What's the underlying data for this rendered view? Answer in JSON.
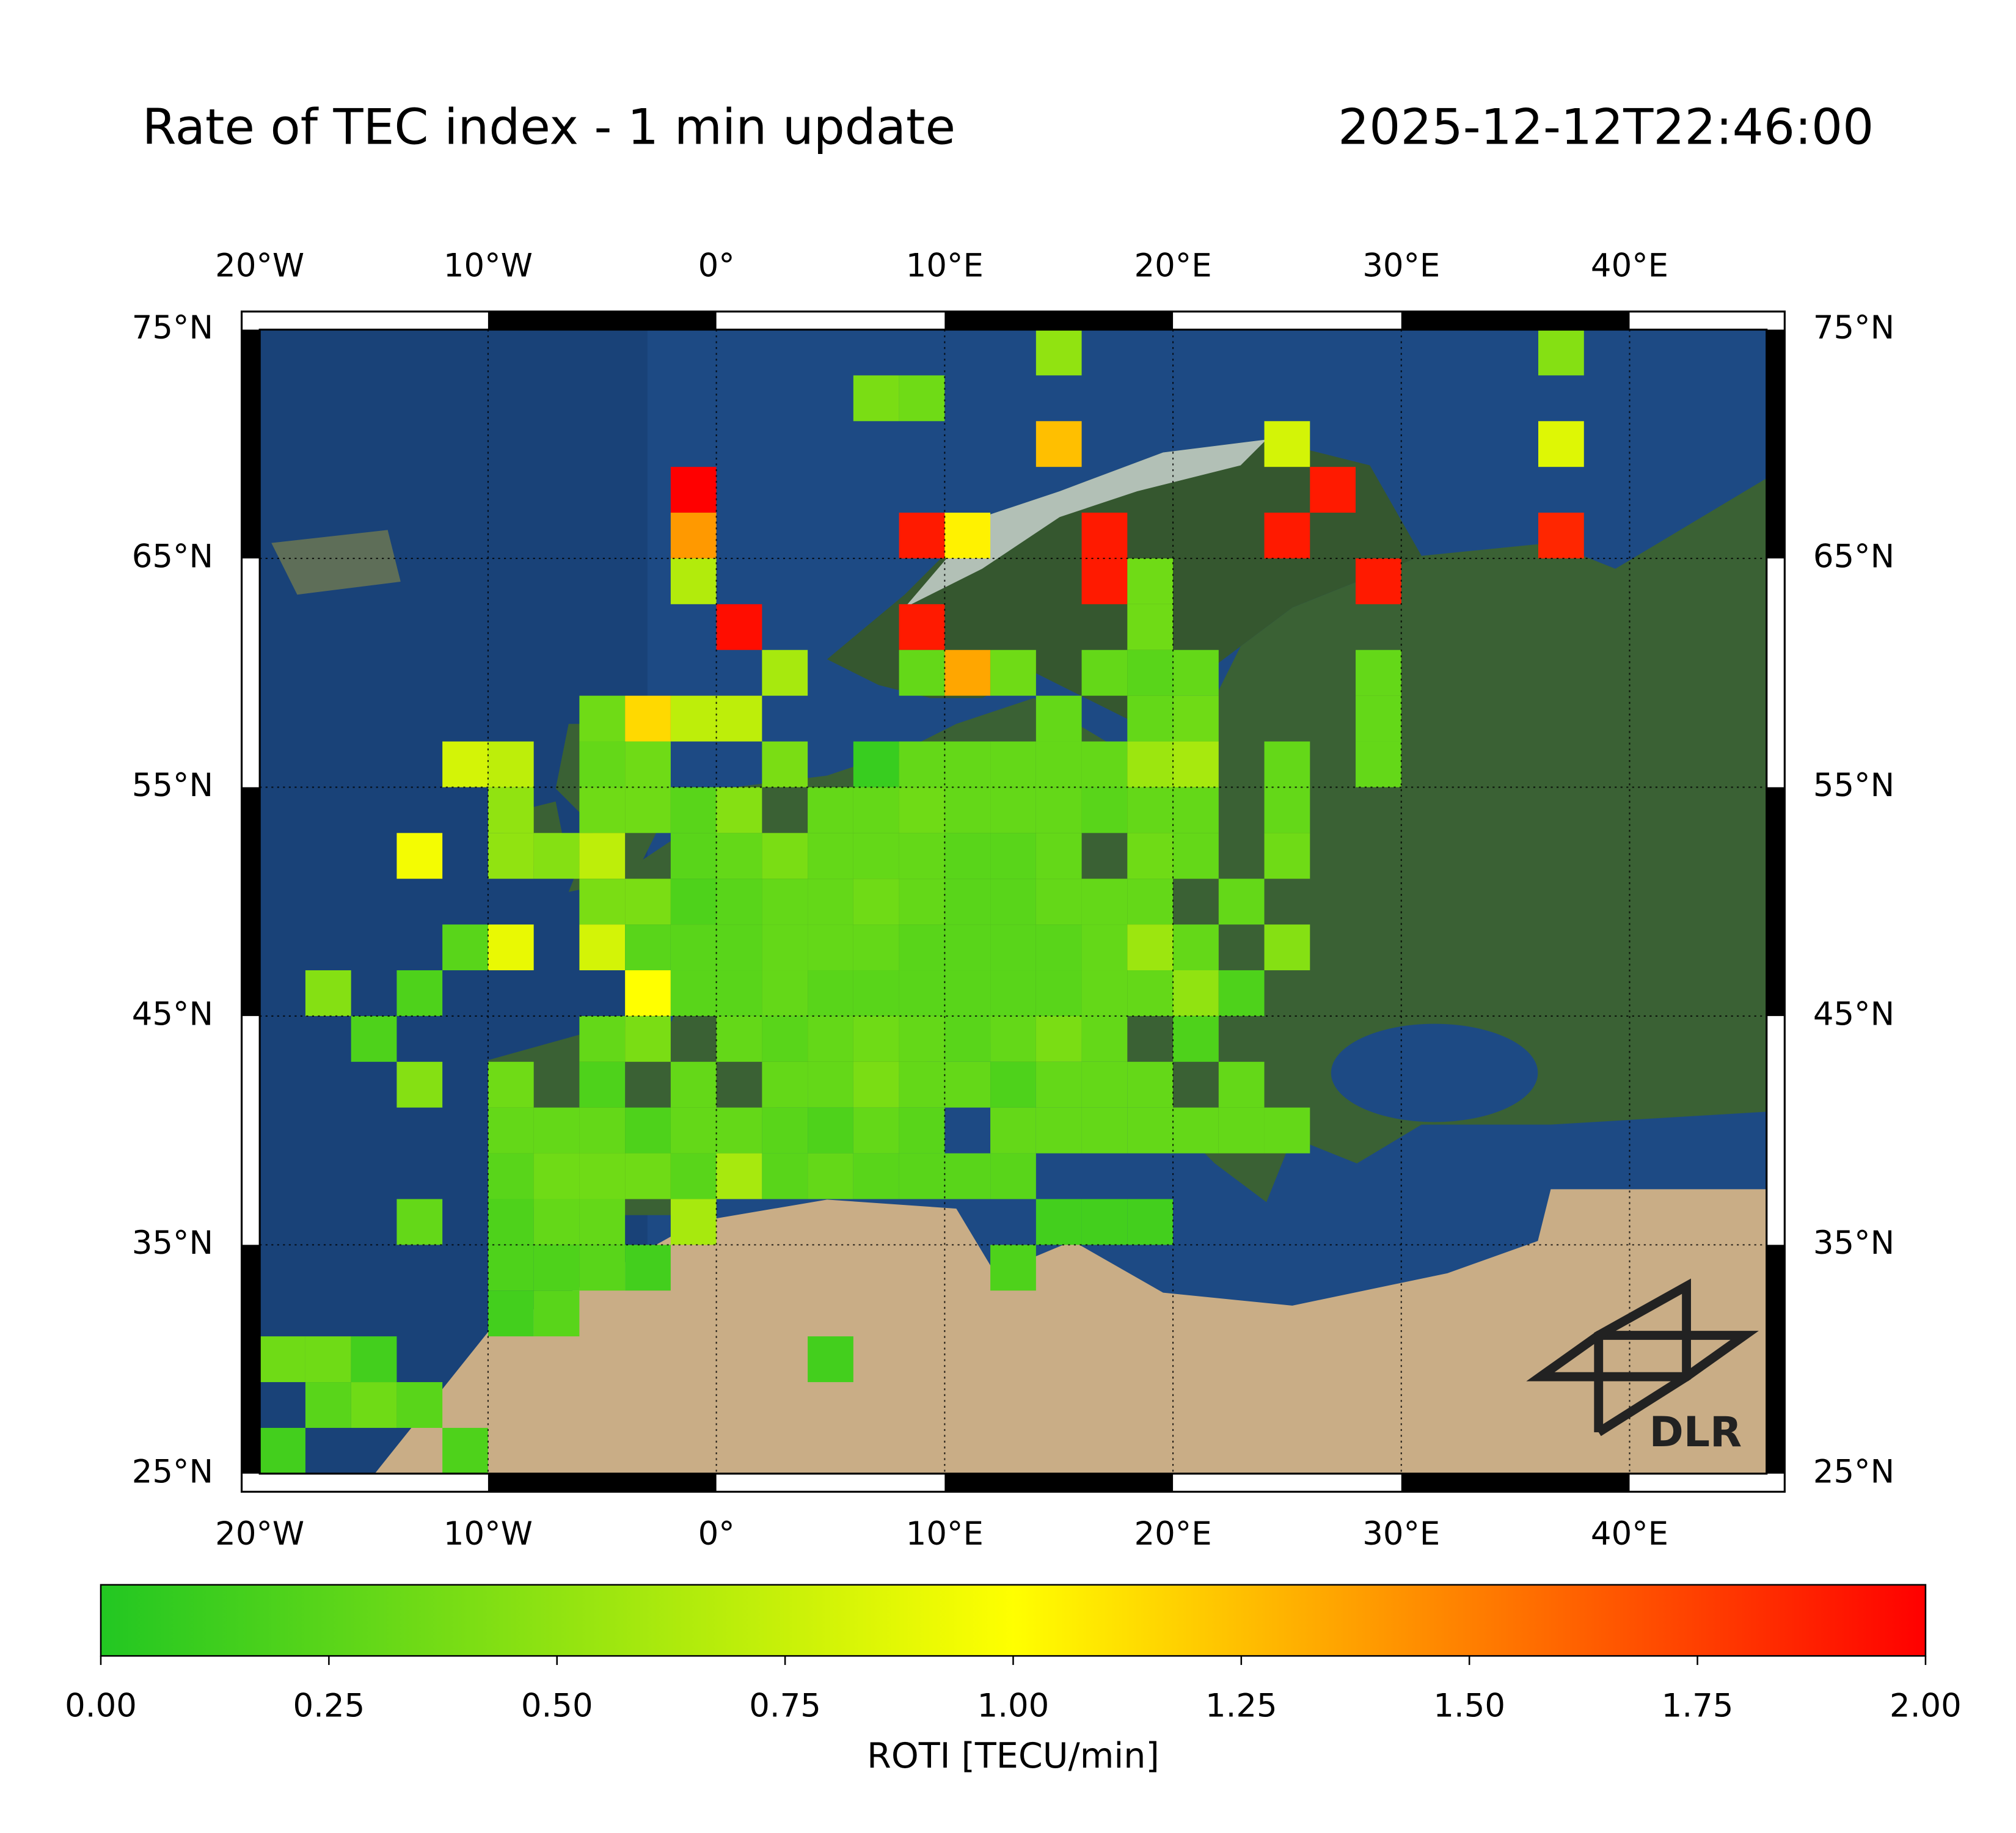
{
  "chart_data": {
    "type": "heatmap",
    "title": "Rate of TEC index - 1 min update",
    "timestamp": "2025-12-12T22:46:00",
    "logo": "DLR",
    "xlim": [
      -20,
      46
    ],
    "ylim": [
      25,
      75
    ],
    "xticks": [
      {
        "value": -20,
        "label": "20°W"
      },
      {
        "value": -10,
        "label": "10°W"
      },
      {
        "value": 0,
        "label": "0°"
      },
      {
        "value": 10,
        "label": "10°E"
      },
      {
        "value": 20,
        "label": "20°E"
      },
      {
        "value": 30,
        "label": "30°E"
      },
      {
        "value": 40,
        "label": "40°E"
      }
    ],
    "yticks": [
      {
        "value": 25,
        "label": "25°N"
      },
      {
        "value": 35,
        "label": "35°N"
      },
      {
        "value": 45,
        "label": "45°N"
      },
      {
        "value": 55,
        "label": "55°N"
      },
      {
        "value": 65,
        "label": "65°N"
      },
      {
        "value": 75,
        "label": "75°N"
      }
    ],
    "grid": true,
    "colormap": [
      "#22c722",
      "#ffff00",
      "#ff0000"
    ],
    "colorbar": {
      "label": "ROTI [TECU/min]",
      "clim": [
        0,
        2
      ],
      "ticks": [
        {
          "value": 0,
          "label": "0.00"
        },
        {
          "value": 0.25,
          "label": "0.25"
        },
        {
          "value": 0.5,
          "label": "0.50"
        },
        {
          "value": 0.75,
          "label": "0.75"
        },
        {
          "value": 1,
          "label": "1.00"
        },
        {
          "value": 1.25,
          "label": "1.25"
        },
        {
          "value": 1.5,
          "label": "1.50"
        },
        {
          "value": 1.75,
          "label": "1.75"
        },
        {
          "value": 2,
          "label": "2.00"
        }
      ]
    },
    "cells": [
      {
        "lon": 15,
        "lat": 74,
        "value": 0.5
      },
      {
        "lon": 37,
        "lat": 74,
        "value": 0.45
      },
      {
        "lon": 7,
        "lat": 72,
        "value": 0.4
      },
      {
        "lon": 9,
        "lat": 72,
        "value": 0.35
      },
      {
        "lon": 15,
        "lat": 70,
        "value": 1.25
      },
      {
        "lon": 25,
        "lat": 70,
        "value": 0.8
      },
      {
        "lon": 37,
        "lat": 70,
        "value": 0.85
      },
      {
        "lon": -1,
        "lat": 68,
        "value": 2
      },
      {
        "lon": 27,
        "lat": 68,
        "value": 1.9
      },
      {
        "lon": -1,
        "lat": 66,
        "value": 1.4
      },
      {
        "lon": 9,
        "lat": 66,
        "value": 1.9
      },
      {
        "lon": 11,
        "lat": 66,
        "value": 1.05
      },
      {
        "lon": 17,
        "lat": 66,
        "value": 1.9
      },
      {
        "lon": 25,
        "lat": 66,
        "value": 1.9
      },
      {
        "lon": 37,
        "lat": 66,
        "value": 1.85
      },
      {
        "lon": -1,
        "lat": 64,
        "value": 0.65
      },
      {
        "lon": 17,
        "lat": 64,
        "value": 1.9
      },
      {
        "lon": 19,
        "lat": 64,
        "value": 0.35
      },
      {
        "lon": 29,
        "lat": 64,
        "value": 1.9
      },
      {
        "lon": 1,
        "lat": 62,
        "value": 1.95
      },
      {
        "lon": 9,
        "lat": 62,
        "value": 1.9
      },
      {
        "lon": 19,
        "lat": 62,
        "value": 0.35
      },
      {
        "lon": 3,
        "lat": 60,
        "value": 0.6
      },
      {
        "lon": 9,
        "lat": 60,
        "value": 0.3
      },
      {
        "lon": 11,
        "lat": 60,
        "value": 1.35
      },
      {
        "lon": 13,
        "lat": 60,
        "value": 0.35
      },
      {
        "lon": 17,
        "lat": 60,
        "value": 0.3
      },
      {
        "lon": 19,
        "lat": 60,
        "value": 0.25
      },
      {
        "lon": 21,
        "lat": 60,
        "value": 0.3
      },
      {
        "lon": 29,
        "lat": 60,
        "value": 0.3
      },
      {
        "lon": -5,
        "lat": 58,
        "value": 0.35
      },
      {
        "lon": -3,
        "lat": 58,
        "value": 1.15
      },
      {
        "lon": -1,
        "lat": 58,
        "value": 0.7
      },
      {
        "lon": 1,
        "lat": 58,
        "value": 0.7
      },
      {
        "lon": 15,
        "lat": 58,
        "value": 0.3
      },
      {
        "lon": 19,
        "lat": 58,
        "value": 0.3
      },
      {
        "lon": 21,
        "lat": 58,
        "value": 0.35
      },
      {
        "lon": 29,
        "lat": 58,
        "value": 0.3
      },
      {
        "lon": -11,
        "lat": 56,
        "value": 0.8
      },
      {
        "lon": -9,
        "lat": 56,
        "value": 0.7
      },
      {
        "lon": -5,
        "lat": 56,
        "value": 0.3
      },
      {
        "lon": -3,
        "lat": 56,
        "value": 0.35
      },
      {
        "lon": 3,
        "lat": 56,
        "value": 0.4
      },
      {
        "lon": 7,
        "lat": 56,
        "value": 0.1
      },
      {
        "lon": 9,
        "lat": 56,
        "value": 0.3
      },
      {
        "lon": 11,
        "lat": 56,
        "value": 0.3
      },
      {
        "lon": 13,
        "lat": 56,
        "value": 0.3
      },
      {
        "lon": 15,
        "lat": 56,
        "value": 0.3
      },
      {
        "lon": 17,
        "lat": 56,
        "value": 0.3
      },
      {
        "lon": 19,
        "lat": 56,
        "value": 0.55
      },
      {
        "lon": 21,
        "lat": 56,
        "value": 0.6
      },
      {
        "lon": 25,
        "lat": 56,
        "value": 0.3
      },
      {
        "lon": 29,
        "lat": 56,
        "value": 0.3
      },
      {
        "lon": -9,
        "lat": 54,
        "value": 0.5
      },
      {
        "lon": -5,
        "lat": 54,
        "value": 0.35
      },
      {
        "lon": -3,
        "lat": 54,
        "value": 0.35
      },
      {
        "lon": -1,
        "lat": 54,
        "value": 0.25
      },
      {
        "lon": 1,
        "lat": 54,
        "value": 0.45
      },
      {
        "lon": 5,
        "lat": 54,
        "value": 0.3
      },
      {
        "lon": 7,
        "lat": 54,
        "value": 0.3
      },
      {
        "lon": 9,
        "lat": 54,
        "value": 0.35
      },
      {
        "lon": 11,
        "lat": 54,
        "value": 0.3
      },
      {
        "lon": 13,
        "lat": 54,
        "value": 0.3
      },
      {
        "lon": 15,
        "lat": 54,
        "value": 0.3
      },
      {
        "lon": 17,
        "lat": 54,
        "value": 0.25
      },
      {
        "lon": 19,
        "lat": 54,
        "value": 0.3
      },
      {
        "lon": 21,
        "lat": 54,
        "value": 0.3
      },
      {
        "lon": 25,
        "lat": 54,
        "value": 0.3
      },
      {
        "lon": -13,
        "lat": 52,
        "value": 0.95
      },
      {
        "lon": -9,
        "lat": 52,
        "value": 0.5
      },
      {
        "lon": -7,
        "lat": 52,
        "value": 0.45
      },
      {
        "lon": -5,
        "lat": 52,
        "value": 0.7
      },
      {
        "lon": -1,
        "lat": 52,
        "value": 0.25
      },
      {
        "lon": 1,
        "lat": 52,
        "value": 0.3
      },
      {
        "lon": 3,
        "lat": 52,
        "value": 0.4
      },
      {
        "lon": 5,
        "lat": 52,
        "value": 0.3
      },
      {
        "lon": 7,
        "lat": 52,
        "value": 0.3
      },
      {
        "lon": 9,
        "lat": 52,
        "value": 0.3
      },
      {
        "lon": 11,
        "lat": 52,
        "value": 0.25
      },
      {
        "lon": 13,
        "lat": 52,
        "value": 0.25
      },
      {
        "lon": 15,
        "lat": 52,
        "value": 0.3
      },
      {
        "lon": 19,
        "lat": 52,
        "value": 0.35
      },
      {
        "lon": 21,
        "lat": 52,
        "value": 0.3
      },
      {
        "lon": 25,
        "lat": 52,
        "value": 0.35
      },
      {
        "lon": -5,
        "lat": 50,
        "value": 0.4
      },
      {
        "lon": -3,
        "lat": 50,
        "value": 0.4
      },
      {
        "lon": -1,
        "lat": 50,
        "value": 0.2
      },
      {
        "lon": 1,
        "lat": 50,
        "value": 0.25
      },
      {
        "lon": 3,
        "lat": 50,
        "value": 0.3
      },
      {
        "lon": 5,
        "lat": 50,
        "value": 0.3
      },
      {
        "lon": 7,
        "lat": 50,
        "value": 0.35
      },
      {
        "lon": 9,
        "lat": 50,
        "value": 0.3
      },
      {
        "lon": 11,
        "lat": 50,
        "value": 0.25
      },
      {
        "lon": 13,
        "lat": 50,
        "value": 0.25
      },
      {
        "lon": 15,
        "lat": 50,
        "value": 0.3
      },
      {
        "lon": 17,
        "lat": 50,
        "value": 0.3
      },
      {
        "lon": 19,
        "lat": 50,
        "value": 0.3
      },
      {
        "lon": 23,
        "lat": 50,
        "value": 0.3
      },
      {
        "lon": -11,
        "lat": 48,
        "value": 0.25
      },
      {
        "lon": -9,
        "lat": 48,
        "value": 0.9
      },
      {
        "lon": -5,
        "lat": 48,
        "value": 0.8
      },
      {
        "lon": -3,
        "lat": 48,
        "value": 0.25
      },
      {
        "lon": -1,
        "lat": 48,
        "value": 0.25
      },
      {
        "lon": 1,
        "lat": 48,
        "value": 0.25
      },
      {
        "lon": 3,
        "lat": 48,
        "value": 0.3
      },
      {
        "lon": 5,
        "lat": 48,
        "value": 0.3
      },
      {
        "lon": 7,
        "lat": 48,
        "value": 0.3
      },
      {
        "lon": 9,
        "lat": 48,
        "value": 0.25
      },
      {
        "lon": 11,
        "lat": 48,
        "value": 0.25
      },
      {
        "lon": 13,
        "lat": 48,
        "value": 0.25
      },
      {
        "lon": 15,
        "lat": 48,
        "value": 0.25
      },
      {
        "lon": 17,
        "lat": 48,
        "value": 0.3
      },
      {
        "lon": 19,
        "lat": 48,
        "value": 0.55
      },
      {
        "lon": 21,
        "lat": 48,
        "value": 0.3
      },
      {
        "lon": 25,
        "lat": 48,
        "value": 0.45
      },
      {
        "lon": -17,
        "lat": 46,
        "value": 0.45
      },
      {
        "lon": -13,
        "lat": 46,
        "value": 0.2
      },
      {
        "lon": -3,
        "lat": 46,
        "value": 1
      },
      {
        "lon": -1,
        "lat": 46,
        "value": 0.25
      },
      {
        "lon": 1,
        "lat": 46,
        "value": 0.25
      },
      {
        "lon": 3,
        "lat": 46,
        "value": 0.3
      },
      {
        "lon": 5,
        "lat": 46,
        "value": 0.25
      },
      {
        "lon": 7,
        "lat": 46,
        "value": 0.25
      },
      {
        "lon": 9,
        "lat": 46,
        "value": 0.25
      },
      {
        "lon": 11,
        "lat": 46,
        "value": 0.25
      },
      {
        "lon": 13,
        "lat": 46,
        "value": 0.25
      },
      {
        "lon": 15,
        "lat": 46,
        "value": 0.25
      },
      {
        "lon": 17,
        "lat": 46,
        "value": 0.3
      },
      {
        "lon": 19,
        "lat": 46,
        "value": 0.3
      },
      {
        "lon": 21,
        "lat": 46,
        "value": 0.5
      },
      {
        "lon": 23,
        "lat": 46,
        "value": 0.2
      },
      {
        "lon": -15,
        "lat": 44,
        "value": 0.2
      },
      {
        "lon": -5,
        "lat": 44,
        "value": 0.3
      },
      {
        "lon": -3,
        "lat": 44,
        "value": 0.4
      },
      {
        "lon": 1,
        "lat": 44,
        "value": 0.3
      },
      {
        "lon": 3,
        "lat": 44,
        "value": 0.25
      },
      {
        "lon": 5,
        "lat": 44,
        "value": 0.3
      },
      {
        "lon": 7,
        "lat": 44,
        "value": 0.35
      },
      {
        "lon": 9,
        "lat": 44,
        "value": 0.3
      },
      {
        "lon": 11,
        "lat": 44,
        "value": 0.25
      },
      {
        "lon": 13,
        "lat": 44,
        "value": 0.3
      },
      {
        "lon": 15,
        "lat": 44,
        "value": 0.4
      },
      {
        "lon": 17,
        "lat": 44,
        "value": 0.3
      },
      {
        "lon": 21,
        "lat": 44,
        "value": 0.2
      },
      {
        "lon": -13,
        "lat": 42,
        "value": 0.45
      },
      {
        "lon": -9,
        "lat": 42,
        "value": 0.35
      },
      {
        "lon": -5,
        "lat": 42,
        "value": 0.2
      },
      {
        "lon": -1,
        "lat": 42,
        "value": 0.3
      },
      {
        "lon": 3,
        "lat": 42,
        "value": 0.3
      },
      {
        "lon": 5,
        "lat": 42,
        "value": 0.3
      },
      {
        "lon": 7,
        "lat": 42,
        "value": 0.4
      },
      {
        "lon": 9,
        "lat": 42,
        "value": 0.3
      },
      {
        "lon": 11,
        "lat": 42,
        "value": 0.3
      },
      {
        "lon": 13,
        "lat": 42,
        "value": 0.2
      },
      {
        "lon": 15,
        "lat": 42,
        "value": 0.3
      },
      {
        "lon": 17,
        "lat": 42,
        "value": 0.3
      },
      {
        "lon": 19,
        "lat": 42,
        "value": 0.3
      },
      {
        "lon": 23,
        "lat": 42,
        "value": 0.3
      },
      {
        "lon": -9,
        "lat": 40,
        "value": 0.3
      },
      {
        "lon": -7,
        "lat": 40,
        "value": 0.3
      },
      {
        "lon": -5,
        "lat": 40,
        "value": 0.3
      },
      {
        "lon": -3,
        "lat": 40,
        "value": 0.2
      },
      {
        "lon": -1,
        "lat": 40,
        "value": 0.3
      },
      {
        "lon": 1,
        "lat": 40,
        "value": 0.3
      },
      {
        "lon": 3,
        "lat": 40,
        "value": 0.25
      },
      {
        "lon": 5,
        "lat": 40,
        "value": 0.2
      },
      {
        "lon": 7,
        "lat": 40,
        "value": 0.3
      },
      {
        "lon": 9,
        "lat": 40,
        "value": 0.25
      },
      {
        "lon": 13,
        "lat": 40,
        "value": 0.3
      },
      {
        "lon": 15,
        "lat": 40,
        "value": 0.3
      },
      {
        "lon": 17,
        "lat": 40,
        "value": 0.3
      },
      {
        "lon": 19,
        "lat": 40,
        "value": 0.3
      },
      {
        "lon": 21,
        "lat": 40,
        "value": 0.3
      },
      {
        "lon": 23,
        "lat": 40,
        "value": 0.3
      },
      {
        "lon": 25,
        "lat": 40,
        "value": 0.3
      },
      {
        "lon": -9,
        "lat": 38,
        "value": 0.25
      },
      {
        "lon": -7,
        "lat": 38,
        "value": 0.35
      },
      {
        "lon": -5,
        "lat": 38,
        "value": 0.35
      },
      {
        "lon": -3,
        "lat": 38,
        "value": 0.35
      },
      {
        "lon": -1,
        "lat": 38,
        "value": 0.25
      },
      {
        "lon": 1,
        "lat": 38,
        "value": 0.6
      },
      {
        "lon": 3,
        "lat": 38,
        "value": 0.25
      },
      {
        "lon": 5,
        "lat": 38,
        "value": 0.3
      },
      {
        "lon": 7,
        "lat": 38,
        "value": 0.25
      },
      {
        "lon": 9,
        "lat": 38,
        "value": 0.25
      },
      {
        "lon": 11,
        "lat": 38,
        "value": 0.25
      },
      {
        "lon": 13,
        "lat": 38,
        "value": 0.25
      },
      {
        "lon": -13,
        "lat": 36,
        "value": 0.3
      },
      {
        "lon": -9,
        "lat": 36,
        "value": 0.2
      },
      {
        "lon": -7,
        "lat": 36,
        "value": 0.3
      },
      {
        "lon": -5,
        "lat": 36,
        "value": 0.3
      },
      {
        "lon": -1,
        "lat": 36,
        "value": 0.6
      },
      {
        "lon": 15,
        "lat": 36,
        "value": 0.15
      },
      {
        "lon": 17,
        "lat": 36,
        "value": 0.15
      },
      {
        "lon": 19,
        "lat": 36,
        "value": 0.15
      },
      {
        "lon": -9,
        "lat": 34,
        "value": 0.2
      },
      {
        "lon": -7,
        "lat": 34,
        "value": 0.2
      },
      {
        "lon": -5,
        "lat": 34,
        "value": 0.25
      },
      {
        "lon": -3,
        "lat": 34,
        "value": 0.15
      },
      {
        "lon": 13,
        "lat": 34,
        "value": 0.2
      },
      {
        "lon": -9,
        "lat": 32,
        "value": 0.15
      },
      {
        "lon": -7,
        "lat": 32,
        "value": 0.25
      },
      {
        "lon": -19,
        "lat": 30,
        "value": 0.35
      },
      {
        "lon": -17,
        "lat": 30,
        "value": 0.35
      },
      {
        "lon": -15,
        "lat": 30,
        "value": 0.15
      },
      {
        "lon": 5,
        "lat": 30,
        "value": 0.15
      },
      {
        "lon": -17,
        "lat": 28,
        "value": 0.25
      },
      {
        "lon": -15,
        "lat": 28,
        "value": 0.35
      },
      {
        "lon": -13,
        "lat": 28,
        "value": 0.25
      },
      {
        "lon": -19,
        "lat": 26,
        "value": 0.15
      },
      {
        "lon": -11,
        "lat": 26,
        "value": 0.2
      }
    ]
  }
}
